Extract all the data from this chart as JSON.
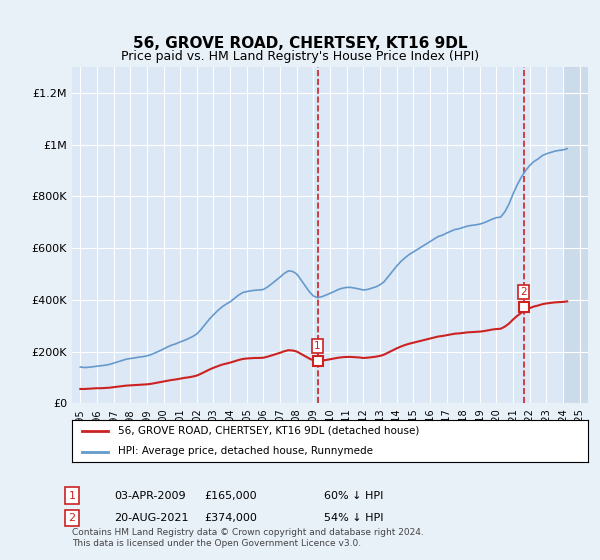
{
  "title": "56, GROVE ROAD, CHERTSEY, KT16 9DL",
  "subtitle": "Price paid vs. HM Land Registry's House Price Index (HPI)",
  "background_color": "#e8f0f8",
  "plot_bg_color": "#dce8f5",
  "hatch_color": "#c8d8e8",
  "ylim": [
    0,
    1300000
  ],
  "yticks": [
    0,
    200000,
    400000,
    600000,
    800000,
    1000000,
    1200000
  ],
  "ytick_labels": [
    "£0",
    "£200K",
    "£400K",
    "£600K",
    "£800K",
    "£1M",
    "£1.2M"
  ],
  "year_start": 1995,
  "year_end": 2025,
  "red_line_label": "56, GROVE ROAD, CHERTSEY, KT16 9DL (detached house)",
  "blue_line_label": "HPI: Average price, detached house, Runnymede",
  "sale1_year": 2009.25,
  "sale1_price": 165000,
  "sale1_label": "1",
  "sale1_date": "03-APR-2009",
  "sale1_price_str": "£165,000",
  "sale1_pct": "60% ↓ HPI",
  "sale2_year": 2021.63,
  "sale2_price": 374000,
  "sale2_label": "2",
  "sale2_date": "20-AUG-2021",
  "sale2_price_str": "£374,000",
  "sale2_pct": "54% ↓ HPI",
  "footer": "Contains HM Land Registry data © Crown copyright and database right 2024.\nThis data is licensed under the Open Government Licence v3.0.",
  "hpi_blue_color": "#6699cc",
  "red_color": "#cc2222",
  "marker_box_color": "#cc2222",
  "dashed_red_color": "#cc2222",
  "hpi_data_x": [
    1995,
    1995.25,
    1995.5,
    1995.75,
    1996,
    1996.25,
    1996.5,
    1996.75,
    1997,
    1997.25,
    1997.5,
    1997.75,
    1998,
    1998.25,
    1998.5,
    1998.75,
    1999,
    1999.25,
    1999.5,
    1999.75,
    2000,
    2000.25,
    2000.5,
    2000.75,
    2001,
    2001.25,
    2001.5,
    2001.75,
    2002,
    2002.25,
    2002.5,
    2002.75,
    2003,
    2003.25,
    2003.5,
    2003.75,
    2004,
    2004.25,
    2004.5,
    2004.75,
    2005,
    2005.25,
    2005.5,
    2005.75,
    2006,
    2006.25,
    2006.5,
    2006.75,
    2007,
    2007.25,
    2007.5,
    2007.75,
    2008,
    2008.25,
    2008.5,
    2008.75,
    2009,
    2009.25,
    2009.5,
    2009.75,
    2010,
    2010.25,
    2010.5,
    2010.75,
    2011,
    2011.25,
    2011.5,
    2011.75,
    2012,
    2012.25,
    2012.5,
    2012.75,
    2013,
    2013.25,
    2013.5,
    2013.75,
    2014,
    2014.25,
    2014.5,
    2014.75,
    2015,
    2015.25,
    2015.5,
    2015.75,
    2016,
    2016.25,
    2016.5,
    2016.75,
    2017,
    2017.25,
    2017.5,
    2017.75,
    2018,
    2018.25,
    2018.5,
    2018.75,
    2019,
    2019.25,
    2019.5,
    2019.75,
    2020,
    2020.25,
    2020.5,
    2020.75,
    2021,
    2021.25,
    2021.5,
    2021.75,
    2022,
    2022.25,
    2022.5,
    2022.75,
    2023,
    2023.25,
    2023.5,
    2023.75,
    2024,
    2024.25
  ],
  "hpi_data_y": [
    140000,
    138000,
    139000,
    141000,
    143000,
    145000,
    147000,
    150000,
    155000,
    160000,
    165000,
    170000,
    173000,
    175000,
    178000,
    180000,
    183000,
    188000,
    195000,
    202000,
    210000,
    218000,
    225000,
    230000,
    237000,
    243000,
    250000,
    258000,
    268000,
    285000,
    305000,
    325000,
    342000,
    358000,
    372000,
    383000,
    392000,
    405000,
    418000,
    428000,
    432000,
    435000,
    437000,
    438000,
    440000,
    450000,
    462000,
    475000,
    488000,
    502000,
    512000,
    510000,
    500000,
    478000,
    455000,
    432000,
    415000,
    408000,
    412000,
    418000,
    425000,
    432000,
    440000,
    445000,
    448000,
    448000,
    445000,
    442000,
    438000,
    440000,
    445000,
    450000,
    458000,
    470000,
    490000,
    510000,
    530000,
    548000,
    562000,
    575000,
    585000,
    595000,
    605000,
    615000,
    625000,
    635000,
    645000,
    650000,
    658000,
    665000,
    672000,
    675000,
    680000,
    685000,
    688000,
    690000,
    693000,
    698000,
    705000,
    712000,
    718000,
    720000,
    740000,
    770000,
    810000,
    845000,
    875000,
    900000,
    920000,
    935000,
    945000,
    958000,
    965000,
    970000,
    975000,
    978000,
    980000,
    985000
  ],
  "red_data_x": [
    1995,
    1995.25,
    1995.5,
    1995.75,
    1996,
    1996.25,
    1996.5,
    1996.75,
    1997,
    1997.25,
    1997.5,
    1997.75,
    1998,
    1998.25,
    1998.5,
    1998.75,
    1999,
    1999.25,
    1999.5,
    1999.75,
    2000,
    2000.25,
    2000.5,
    2000.75,
    2001,
    2001.25,
    2001.5,
    2001.75,
    2002,
    2002.25,
    2002.5,
    2002.75,
    2003,
    2003.25,
    2003.5,
    2003.75,
    2004,
    2004.25,
    2004.5,
    2004.75,
    2005,
    2005.25,
    2005.5,
    2005.75,
    2006,
    2006.25,
    2006.5,
    2006.75,
    2007,
    2007.25,
    2007.5,
    2007.75,
    2008,
    2008.25,
    2008.5,
    2008.75,
    2009,
    2009.25,
    2009.5,
    2009.75,
    2010,
    2010.25,
    2010.5,
    2010.75,
    2011,
    2011.25,
    2011.5,
    2011.75,
    2012,
    2012.25,
    2012.5,
    2012.75,
    2013,
    2013.25,
    2013.5,
    2013.75,
    2014,
    2014.25,
    2014.5,
    2014.75,
    2015,
    2015.25,
    2015.5,
    2015.75,
    2016,
    2016.25,
    2016.5,
    2016.75,
    2017,
    2017.25,
    2017.5,
    2017.75,
    2018,
    2018.25,
    2018.5,
    2018.75,
    2019,
    2019.25,
    2019.5,
    2019.75,
    2020,
    2020.25,
    2020.5,
    2020.75,
    2021,
    2021.25,
    2021.5,
    2021.75,
    2022,
    2022.25,
    2022.5,
    2022.75,
    2023,
    2023.25,
    2023.5,
    2023.75,
    2024,
    2024.25
  ],
  "red_data_y": [
    55000,
    55000,
    56000,
    57000,
    58000,
    58000,
    59000,
    60000,
    62000,
    64000,
    66000,
    68000,
    69000,
    70000,
    71000,
    72000,
    73000,
    75000,
    78000,
    81000,
    84000,
    87000,
    90000,
    92000,
    95000,
    98000,
    100000,
    103000,
    107000,
    114000,
    122000,
    130000,
    137000,
    143000,
    149000,
    153000,
    157000,
    162000,
    167000,
    171000,
    173000,
    174000,
    175000,
    175000,
    176000,
    180000,
    185000,
    190000,
    195000,
    201000,
    205000,
    204000,
    200000,
    191000,
    182000,
    173000,
    166000,
    165000,
    165000,
    167000,
    170000,
    173000,
    176000,
    178000,
    179000,
    179000,
    178000,
    177000,
    175000,
    176000,
    178000,
    180000,
    183000,
    188000,
    196000,
    204000,
    212000,
    219000,
    225000,
    230000,
    234000,
    238000,
    242000,
    246000,
    250000,
    254000,
    258000,
    260000,
    263000,
    266000,
    269000,
    270000,
    272000,
    274000,
    275000,
    276000,
    277000,
    279000,
    282000,
    285000,
    287000,
    288000,
    296000,
    308000,
    324000,
    338000,
    350000,
    360000,
    368000,
    374000,
    378000,
    383000,
    386000,
    388000,
    390000,
    391000,
    392000,
    394000
  ]
}
